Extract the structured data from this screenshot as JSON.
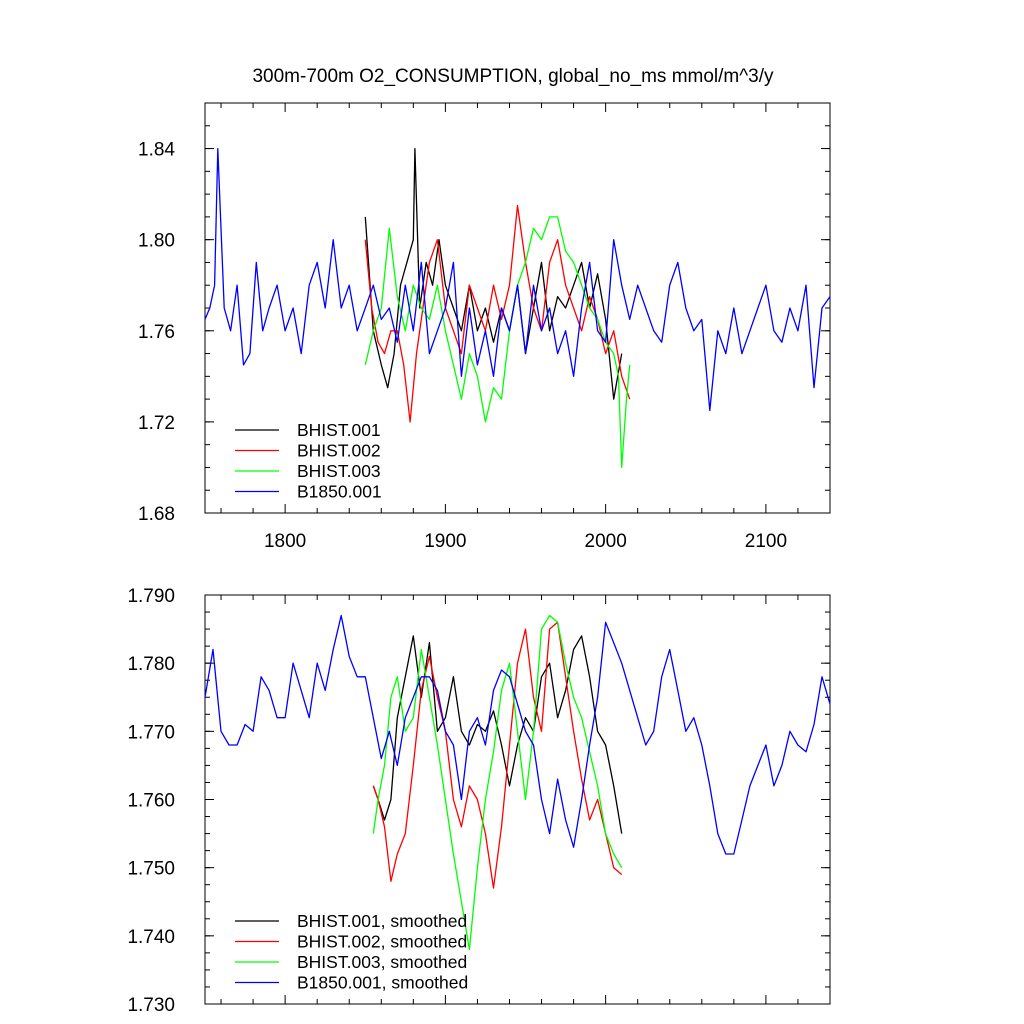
{
  "title": "300m-700m O2_CONSUMPTION, global_no_ms   mmol/m^3/y",
  "colors": {
    "BHIST.001": "#000000",
    "BHIST.002": "#ff0000",
    "BHIST.003": "#00ff00",
    "B1850.001": "#0000ff"
  },
  "chart_data": [
    {
      "type": "line",
      "title": "300m-700m O2_CONSUMPTION, global_no_ms   mmol/m^3/y",
      "xlim": [
        1750,
        2140
      ],
      "ylim": [
        1.68,
        1.86
      ],
      "x_ticks": [
        1800,
        1900,
        2000,
        2100
      ],
      "x_tick_labels": [
        "1800",
        "1900",
        "2000",
        "2100"
      ],
      "y_ticks": [
        1.68,
        1.72,
        1.76,
        1.8,
        1.84
      ],
      "y_tick_labels": [
        "1.68",
        "1.72",
        "1.76",
        "1.80",
        "1.84"
      ],
      "legend_placement": "bottom-left",
      "series": [
        {
          "name": "BHIST.001",
          "x": [
            1850,
            1855,
            1860,
            1864,
            1868,
            1872,
            1876,
            1880,
            1881,
            1884,
            1888,
            1892,
            1896,
            1900,
            1905,
            1910,
            1915,
            1920,
            1925,
            1930,
            1935,
            1940,
            1945,
            1950,
            1955,
            1960,
            1965,
            1970,
            1975,
            1980,
            1985,
            1990,
            1995,
            2000,
            2005,
            2010
          ],
          "y": [
            1.81,
            1.76,
            1.745,
            1.735,
            1.75,
            1.78,
            1.79,
            1.8,
            1.84,
            1.77,
            1.79,
            1.78,
            1.8,
            1.78,
            1.77,
            1.76,
            1.78,
            1.76,
            1.77,
            1.755,
            1.77,
            1.76,
            1.78,
            1.75,
            1.77,
            1.79,
            1.76,
            1.775,
            1.77,
            1.78,
            1.79,
            1.77,
            1.785,
            1.765,
            1.73,
            1.75
          ]
        },
        {
          "name": "BHIST.002",
          "x": [
            1850,
            1854,
            1858,
            1862,
            1866,
            1870,
            1874,
            1878,
            1882,
            1886,
            1890,
            1895,
            1900,
            1905,
            1910,
            1915,
            1920,
            1925,
            1930,
            1935,
            1940,
            1945,
            1950,
            1955,
            1960,
            1965,
            1970,
            1975,
            1980,
            1985,
            1990,
            1995,
            2000,
            2005,
            2010,
            2015
          ],
          "y": [
            1.8,
            1.77,
            1.755,
            1.75,
            1.76,
            1.76,
            1.745,
            1.72,
            1.75,
            1.77,
            1.79,
            1.8,
            1.77,
            1.76,
            1.75,
            1.78,
            1.77,
            1.76,
            1.78,
            1.765,
            1.78,
            1.815,
            1.79,
            1.77,
            1.76,
            1.79,
            1.8,
            1.78,
            1.77,
            1.76,
            1.775,
            1.765,
            1.75,
            1.76,
            1.74,
            1.73
          ]
        },
        {
          "name": "BHIST.003",
          "x": [
            1850,
            1855,
            1860,
            1865,
            1870,
            1875,
            1880,
            1885,
            1890,
            1895,
            1900,
            1905,
            1910,
            1915,
            1920,
            1925,
            1930,
            1935,
            1940,
            1945,
            1950,
            1955,
            1960,
            1965,
            1970,
            1975,
            1980,
            1985,
            1990,
            1995,
            2000,
            2005,
            2008,
            2010,
            2013,
            2015
          ],
          "y": [
            1.745,
            1.76,
            1.77,
            1.805,
            1.775,
            1.76,
            1.78,
            1.77,
            1.765,
            1.78,
            1.76,
            1.745,
            1.73,
            1.75,
            1.74,
            1.72,
            1.735,
            1.73,
            1.76,
            1.78,
            1.79,
            1.805,
            1.8,
            1.81,
            1.81,
            1.795,
            1.79,
            1.78,
            1.77,
            1.765,
            1.755,
            1.75,
            1.74,
            1.7,
            1.73,
            1.745
          ]
        },
        {
          "name": "B1850.001",
          "x": [
            1750,
            1753,
            1756,
            1758,
            1762,
            1766,
            1770,
            1774,
            1778,
            1782,
            1786,
            1790,
            1795,
            1800,
            1805,
            1810,
            1815,
            1820,
            1825,
            1830,
            1835,
            1840,
            1845,
            1850,
            1855,
            1860,
            1865,
            1870,
            1875,
            1880,
            1885,
            1890,
            1895,
            1900,
            1905,
            1910,
            1915,
            1920,
            1925,
            1930,
            1935,
            1940,
            1945,
            1950,
            1955,
            1960,
            1965,
            1970,
            1975,
            1980,
            1985,
            1990,
            1995,
            2000,
            2005,
            2010,
            2015,
            2020,
            2025,
            2030,
            2035,
            2040,
            2045,
            2050,
            2055,
            2060,
            2065,
            2070,
            2075,
            2080,
            2085,
            2090,
            2095,
            2100,
            2105,
            2110,
            2115,
            2120,
            2125,
            2130,
            2135,
            2140
          ],
          "y": [
            1.765,
            1.77,
            1.78,
            1.84,
            1.77,
            1.76,
            1.78,
            1.745,
            1.75,
            1.79,
            1.76,
            1.77,
            1.78,
            1.76,
            1.77,
            1.75,
            1.78,
            1.79,
            1.77,
            1.8,
            1.77,
            1.78,
            1.76,
            1.77,
            1.78,
            1.765,
            1.77,
            1.755,
            1.78,
            1.76,
            1.79,
            1.75,
            1.76,
            1.77,
            1.79,
            1.74,
            1.77,
            1.745,
            1.76,
            1.74,
            1.77,
            1.76,
            1.78,
            1.75,
            1.78,
            1.76,
            1.77,
            1.75,
            1.76,
            1.74,
            1.77,
            1.79,
            1.76,
            1.755,
            1.8,
            1.78,
            1.765,
            1.78,
            1.77,
            1.76,
            1.755,
            1.78,
            1.79,
            1.77,
            1.76,
            1.765,
            1.725,
            1.76,
            1.75,
            1.77,
            1.75,
            1.76,
            1.77,
            1.78,
            1.76,
            1.755,
            1.77,
            1.76,
            1.78,
            1.735,
            1.77,
            1.775
          ]
        }
      ]
    },
    {
      "type": "line",
      "xlim": [
        1750,
        2140
      ],
      "ylim": [
        1.73,
        1.79
      ],
      "y_ticks": [
        1.73,
        1.74,
        1.75,
        1.76,
        1.77,
        1.78,
        1.79
      ],
      "y_tick_labels": [
        "1.730",
        "1.740",
        "1.750",
        "1.760",
        "1.770",
        "1.780",
        "1.790"
      ],
      "legend_placement": "bottom-left",
      "series": [
        {
          "name": "BHIST.001, smoothed",
          "x": [
            1855,
            1858,
            1862,
            1866,
            1870,
            1875,
            1880,
            1885,
            1890,
            1895,
            1900,
            1905,
            1910,
            1915,
            1920,
            1925,
            1930,
            1935,
            1940,
            1945,
            1950,
            1955,
            1960,
            1965,
            1970,
            1975,
            1980,
            1985,
            1990,
            1995,
            2000,
            2005,
            2010
          ],
          "y": [
            1.762,
            1.76,
            1.757,
            1.76,
            1.772,
            1.778,
            1.784,
            1.775,
            1.783,
            1.77,
            1.772,
            1.778,
            1.77,
            1.768,
            1.771,
            1.77,
            1.773,
            1.768,
            1.762,
            1.768,
            1.772,
            1.77,
            1.778,
            1.78,
            1.772,
            1.776,
            1.782,
            1.784,
            1.778,
            1.77,
            1.768,
            1.762,
            1.755
          ]
        },
        {
          "name": "BHIST.002, smoothed",
          "x": [
            1855,
            1858,
            1862,
            1866,
            1870,
            1875,
            1880,
            1885,
            1890,
            1895,
            1900,
            1905,
            1910,
            1915,
            1920,
            1925,
            1930,
            1935,
            1940,
            1945,
            1950,
            1955,
            1960,
            1965,
            1970,
            1975,
            1980,
            1985,
            1990,
            1995,
            2000,
            2005,
            2010
          ],
          "y": [
            1.762,
            1.76,
            1.756,
            1.748,
            1.752,
            1.755,
            1.765,
            1.776,
            1.781,
            1.775,
            1.77,
            1.76,
            1.756,
            1.762,
            1.76,
            1.755,
            1.747,
            1.756,
            1.768,
            1.78,
            1.785,
            1.775,
            1.77,
            1.785,
            1.786,
            1.778,
            1.77,
            1.763,
            1.757,
            1.76,
            1.755,
            1.75,
            1.749
          ]
        },
        {
          "name": "BHIST.003, smoothed",
          "x": [
            1855,
            1858,
            1862,
            1866,
            1870,
            1875,
            1880,
            1885,
            1890,
            1895,
            1900,
            1905,
            1910,
            1915,
            1920,
            1925,
            1930,
            1935,
            1940,
            1945,
            1950,
            1955,
            1960,
            1965,
            1970,
            1975,
            1980,
            1985,
            1990,
            1995,
            2000,
            2005,
            2010
          ],
          "y": [
            1.755,
            1.76,
            1.765,
            1.775,
            1.778,
            1.77,
            1.772,
            1.782,
            1.775,
            1.768,
            1.76,
            1.752,
            1.745,
            1.738,
            1.75,
            1.76,
            1.767,
            1.776,
            1.78,
            1.77,
            1.76,
            1.77,
            1.785,
            1.787,
            1.786,
            1.78,
            1.775,
            1.772,
            1.767,
            1.762,
            1.755,
            1.752,
            1.75
          ]
        },
        {
          "name": "B1850.001, smoothed",
          "x": [
            1750,
            1755,
            1760,
            1765,
            1770,
            1775,
            1780,
            1785,
            1790,
            1795,
            1800,
            1805,
            1810,
            1815,
            1820,
            1825,
            1830,
            1835,
            1840,
            1845,
            1850,
            1855,
            1860,
            1865,
            1870,
            1875,
            1880,
            1885,
            1890,
            1895,
            1900,
            1905,
            1910,
            1915,
            1920,
            1925,
            1930,
            1935,
            1940,
            1945,
            1950,
            1955,
            1960,
            1965,
            1970,
            1975,
            1980,
            1985,
            1990,
            1995,
            2000,
            2005,
            2010,
            2015,
            2020,
            2025,
            2030,
            2035,
            2040,
            2045,
            2050,
            2055,
            2060,
            2065,
            2070,
            2075,
            2080,
            2085,
            2090,
            2095,
            2100,
            2105,
            2110,
            2115,
            2120,
            2125,
            2130,
            2135,
            2140
          ],
          "y": [
            1.775,
            1.782,
            1.77,
            1.768,
            1.768,
            1.771,
            1.77,
            1.778,
            1.776,
            1.772,
            1.772,
            1.78,
            1.776,
            1.772,
            1.78,
            1.776,
            1.782,
            1.787,
            1.781,
            1.778,
            1.778,
            1.772,
            1.766,
            1.77,
            1.765,
            1.772,
            1.775,
            1.778,
            1.778,
            1.776,
            1.77,
            1.768,
            1.76,
            1.77,
            1.772,
            1.768,
            1.776,
            1.779,
            1.778,
            1.774,
            1.77,
            1.768,
            1.76,
            1.755,
            1.763,
            1.757,
            1.753,
            1.76,
            1.768,
            1.775,
            1.786,
            1.783,
            1.78,
            1.776,
            1.772,
            1.768,
            1.77,
            1.778,
            1.782,
            1.776,
            1.77,
            1.772,
            1.768,
            1.762,
            1.755,
            1.752,
            1.752,
            1.757,
            1.762,
            1.765,
            1.768,
            1.762,
            1.765,
            1.77,
            1.768,
            1.767,
            1.771,
            1.778,
            1.774
          ]
        }
      ]
    }
  ]
}
